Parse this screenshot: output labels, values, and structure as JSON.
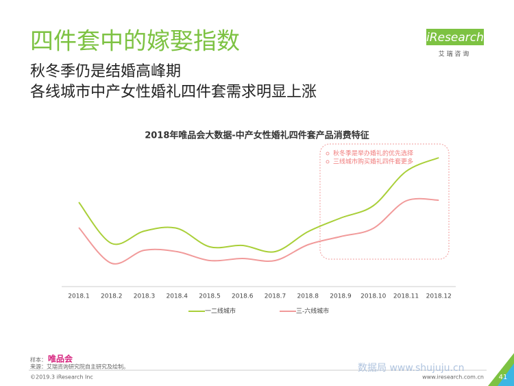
{
  "header": {
    "title": "四件套中的嫁娶指数",
    "subtitle_lines": [
      "秋冬季仍是结婚高峰期",
      "各线城市中产女性婚礼四件套需求明显上涨"
    ],
    "logo": "iResearch",
    "logo_sub": "艾 瑞 咨 询"
  },
  "chart_data": {
    "type": "line",
    "title": "2018年唯品会大数据-中产女性婚礼四件套产品消费特征",
    "categories": [
      "2018.1",
      "2018.2",
      "2018.3",
      "2018.4",
      "2018.5",
      "2018.6",
      "2018.7",
      "2018.8",
      "2018.9",
      "2018.10",
      "2018.11",
      "2018.12"
    ],
    "series": [
      {
        "name": "一二线城市",
        "color": "#a9cf38",
        "values": [
          61.5,
          31.5,
          40.5,
          42.5,
          29,
          30,
          25.5,
          40,
          50,
          59,
          84,
          94
        ]
      },
      {
        "name": "三-六线城市",
        "color": "#f19a9a",
        "values": [
          43,
          17,
          26.5,
          25.5,
          19,
          20.5,
          19,
          30.5,
          36.5,
          42.5,
          62.5,
          63
        ]
      }
    ],
    "ylim": [
      0,
      100
    ],
    "annotations": [
      "秋冬季是举办婚礼的优先选择",
      "三线城市购买婚礼四件套更多"
    ]
  },
  "footer": {
    "sample_label": "样本：",
    "sample": "唯品会",
    "source": "来源：艾瑞咨询研究院自主研究及绘制。",
    "copyright": "©2019.3 iResearch Inc",
    "website": "www.iresearch.com.cn",
    "page": "41",
    "watermark": "数据局 www.shujuju.cn"
  }
}
